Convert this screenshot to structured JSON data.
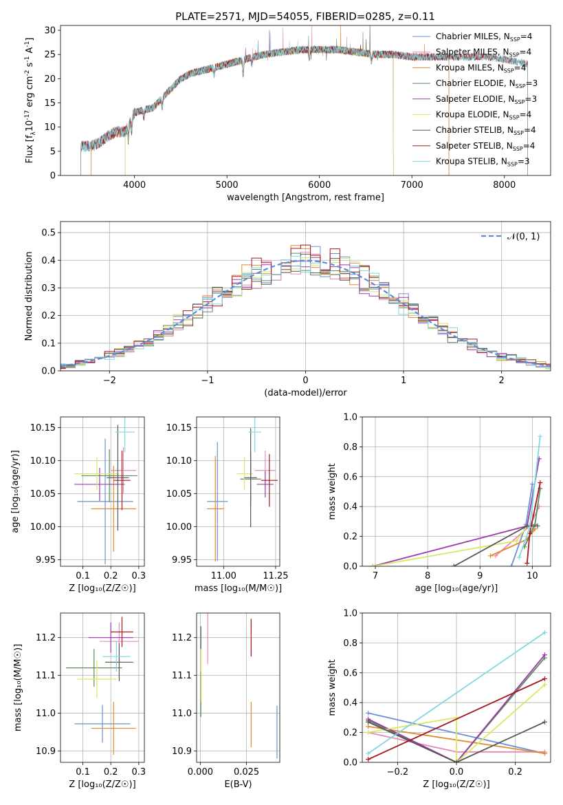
{
  "figure_title": "PLATE=2571, MJD=54055, FIBERID=0285, z=0.11",
  "colors": {
    "Chabrier MILES": "#6a8fd6",
    "Salpeter MILES": "#e88ab6",
    "Kroupa MILES": "#e08a2a",
    "Chabrier ELODIE": "#5e8a5c",
    "Salpeter ELODIE": "#9b3aa8",
    "Kroupa ELODIE": "#d8e860",
    "Chabrier STELIB": "#555555",
    "Salpeter STELIB": "#a8141e",
    "Kroupa STELIB": "#7fd8e0"
  },
  "chart_data": [
    {
      "id": "spectrum",
      "type": "line",
      "xlabel": "wavelength [Angstrom, rest frame]",
      "ylabel_main": "Flux [f",
      "ylabel_sub": "λ",
      "ylabel_mid": "10",
      "ylabel_sup1": "-17",
      "ylabel_tail": " erg cm",
      "ylabel_sup2": "-2",
      "ylabel_tail2": " s",
      "ylabel_sup3": "-1",
      "ylabel_tail3": " A",
      "ylabel_sup4": "-1",
      "ylabel_end": "]",
      "xlim": [
        3200,
        8500
      ],
      "ylim": [
        0,
        31
      ],
      "xticks": [
        4000,
        5000,
        6000,
        7000,
        8000
      ],
      "yticks": [
        0,
        5,
        10,
        15,
        20,
        25,
        30
      ],
      "legend_position": "top-right",
      "legend": [
        {
          "name": "Chabrier MILES",
          "sub": "SSP",
          "val": "=4"
        },
        {
          "name": "Salpeter MILES",
          "sub": "SSP",
          "val": "=4"
        },
        {
          "name": "Kroupa MILES",
          "sub": "SSP",
          "val": "=4"
        },
        {
          "name": "Chabrier ELODIE",
          "sub": "SSP",
          "val": "=3"
        },
        {
          "name": "Salpeter ELODIE",
          "sub": "SSP",
          "val": "=3"
        },
        {
          "name": "Kroupa ELODIE",
          "sub": "SSP",
          "val": "=4"
        },
        {
          "name": "Chabrier STELIB",
          "sub": "SSP",
          "val": "=4"
        },
        {
          "name": "Salpeter STELIB",
          "sub": "SSP",
          "val": "=4"
        },
        {
          "name": "Kroupa STELIB",
          "sub": "SSP",
          "val": "=3"
        }
      ],
      "series_ranges": [
        {
          "name": "Chabrier MILES",
          "x": [
            3530,
            7400
          ]
        },
        {
          "name": "Salpeter MILES",
          "x": [
            3530,
            7400
          ]
        },
        {
          "name": "Kroupa MILES",
          "x": [
            3530,
            7400
          ]
        },
        {
          "name": "Chabrier ELODIE",
          "x": [
            3900,
            6800
          ]
        },
        {
          "name": "Salpeter ELODIE",
          "x": [
            3900,
            6800
          ]
        },
        {
          "name": "Kroupa ELODIE",
          "x": [
            3900,
            6800
          ]
        },
        {
          "name": "Chabrier STELIB",
          "x": [
            3420,
            8250
          ]
        },
        {
          "name": "Salpeter STELIB",
          "x": [
            3420,
            8250
          ]
        },
        {
          "name": "Kroupa STELIB",
          "x": [
            3420,
            8250
          ]
        }
      ],
      "continuum": {
        "x": [
          3420,
          3500,
          3600,
          3700,
          3800,
          3900,
          4000,
          4100,
          4200,
          4300,
          4400,
          4500,
          4600,
          4800,
          5000,
          5200,
          5400,
          5600,
          5800,
          6000,
          6200,
          6400,
          6600,
          6800,
          7000,
          7200,
          7400,
          7600,
          7800,
          8000,
          8250
        ],
        "y": [
          6,
          6,
          6.5,
          8,
          9,
          9,
          13,
          13.5,
          14,
          16,
          18,
          20,
          21,
          22,
          23,
          24,
          25,
          25.5,
          26,
          26,
          26,
          25.5,
          25,
          25,
          24.5,
          24.5,
          24.5,
          24.5,
          24.5,
          24,
          23
        ]
      }
    },
    {
      "id": "residuals",
      "type": "histogram",
      "xlabel": "(data-model)/error",
      "ylabel": "Normed distribution",
      "xlim": [
        -2.5,
        2.5
      ],
      "ylim": [
        0,
        0.54
      ],
      "xticks": [
        -2,
        -1,
        0,
        1,
        2
      ],
      "yticks": [
        0.0,
        0.1,
        0.2,
        0.3,
        0.4,
        0.5
      ],
      "grid": true,
      "legend_position": "top-right",
      "legend_label": "𝒩(0, 1)",
      "bin_width": 0.1
    },
    {
      "id": "age_vs_Z",
      "type": "scatter",
      "xlabel": "Z [log₁₀(Z/Z☉)]",
      "ylabel": "age  [log₁₀(age/yr)]",
      "xlim": [
        0.02,
        0.32
      ],
      "ylim": [
        9.94,
        10.166
      ],
      "xticks": [
        0.1,
        0.2,
        0.3
      ],
      "yticks": [
        9.95,
        10.0,
        10.05,
        10.1,
        10.15
      ],
      "grid": true,
      "points": [
        {
          "series": "Chabrier MILES",
          "x": 0.18,
          "y": 10.038,
          "xerr": 0.1,
          "yerr": 0.095
        },
        {
          "series": "Salpeter MILES",
          "x": 0.245,
          "y": 10.085,
          "xerr": 0.045,
          "yerr": 0.035
        },
        {
          "series": "Kroupa MILES",
          "x": 0.21,
          "y": 10.027,
          "xerr": 0.08,
          "yerr": 0.065
        },
        {
          "series": "Chabrier ELODIE",
          "x": 0.195,
          "y": 10.077,
          "xerr": 0.1,
          "yerr": 0.04
        },
        {
          "series": "Salpeter ELODIE",
          "x": 0.16,
          "y": 10.064,
          "xerr": 0.09,
          "yerr": 0.025
        },
        {
          "series": "Kroupa ELODIE",
          "x": 0.15,
          "y": 10.08,
          "xerr": 0.08,
          "yerr": 0.025
        },
        {
          "series": "Chabrier STELIB",
          "x": 0.225,
          "y": 10.074,
          "xerr": 0.04,
          "yerr": 0.08
        },
        {
          "series": "Salpeter STELIB",
          "x": 0.24,
          "y": 10.07,
          "xerr": 0.03,
          "yerr": 0.045
        },
        {
          "series": "Kroupa STELIB",
          "x": 0.25,
          "y": 10.143,
          "xerr": 0.035,
          "yerr": 0.03
        }
      ]
    },
    {
      "id": "age_vs_mass",
      "type": "scatter",
      "xlabel": "mass [log₁₀(M/M☉)]",
      "ylabel": "",
      "xlim": [
        10.87,
        11.27
      ],
      "ylim": [
        9.94,
        10.166
      ],
      "xticks": [
        11.0,
        11.25
      ],
      "yticks": [
        9.95,
        10.0,
        10.05,
        10.1,
        10.15
      ],
      "grid": true,
      "points": [
        {
          "series": "Chabrier MILES",
          "x": 10.97,
          "y": 10.038,
          "xerr": 0.05,
          "yerr": 0.09
        },
        {
          "series": "Salpeter MILES",
          "x": 11.2,
          "y": 10.085,
          "xerr": 0.05,
          "yerr": 0.03
        },
        {
          "series": "Kroupa MILES",
          "x": 10.96,
          "y": 10.027,
          "xerr": 0.04,
          "yerr": 0.08
        },
        {
          "series": "Chabrier ELODIE",
          "x": 11.13,
          "y": 10.072,
          "xerr": 0.05,
          "yerr": 0.04
        },
        {
          "series": "Salpeter ELODIE",
          "x": 11.2,
          "y": 10.064,
          "xerr": 0.04,
          "yerr": 0.02
        },
        {
          "series": "Kroupa ELODIE",
          "x": 11.1,
          "y": 10.08,
          "xerr": 0.04,
          "yerr": 0.025
        },
        {
          "series": "Chabrier STELIB",
          "x": 11.13,
          "y": 10.074,
          "xerr": 0.03,
          "yerr": 0.075
        },
        {
          "series": "Salpeter STELIB",
          "x": 11.22,
          "y": 10.07,
          "xerr": 0.04,
          "yerr": 0.04
        },
        {
          "series": "Kroupa STELIB",
          "x": 11.15,
          "y": 10.143,
          "xerr": 0.03,
          "yerr": 0.03
        }
      ]
    },
    {
      "id": "weight_vs_age",
      "type": "line",
      "xlabel": "age  [log₁₀(age/yr)]",
      "ylabel": "mass weight",
      "xlim": [
        6.75,
        10.35
      ],
      "ylim": [
        0,
        1.0
      ],
      "xticks": [
        7,
        8,
        9,
        10
      ],
      "yticks": [
        0.0,
        0.2,
        0.4,
        0.6,
        0.8,
        1.0
      ],
      "grid": true,
      "series": [
        {
          "name": "Chabrier MILES",
          "x": [
            9.6,
            9.88,
            10.0
          ],
          "y": [
            0.0,
            0.28,
            0.55
          ]
        },
        {
          "name": "Salpeter MILES",
          "x": [
            9.3,
            9.95,
            10.13
          ],
          "y": [
            0.07,
            0.27,
            0.4
          ]
        },
        {
          "name": "Kroupa MILES",
          "x": [
            9.2,
            9.9,
            10.05
          ],
          "y": [
            0.07,
            0.18,
            0.25
          ]
        },
        {
          "name": "Chabrier ELODIE",
          "x": [
            9.85,
            10.05,
            10.15
          ],
          "y": [
            0.13,
            0.28,
            0.52
          ]
        },
        {
          "name": "Salpeter ELODIE",
          "x": [
            6.95,
            9.9,
            10.13
          ],
          "y": [
            0.0,
            0.27,
            0.72
          ]
        },
        {
          "name": "Kroupa ELODIE",
          "x": [
            6.95,
            9.7,
            9.9
          ],
          "y": [
            0.0,
            0.17,
            0.27
          ]
        },
        {
          "name": "Chabrier STELIB",
          "x": [
            8.5,
            9.9,
            10.1
          ],
          "y": [
            0.0,
            0.27,
            0.27
          ]
        },
        {
          "name": "Salpeter STELIB",
          "x": [
            9.9,
            9.95,
            10.15
          ],
          "y": [
            0.02,
            0.22,
            0.56
          ]
        },
        {
          "name": "Kroupa STELIB",
          "x": [
            9.75,
            9.95,
            10.15
          ],
          "y": [
            0.06,
            0.26,
            0.87
          ]
        }
      ]
    },
    {
      "id": "mass_vs_Z",
      "type": "scatter",
      "xlabel": "Z [log₁₀(Z/Z☉)]",
      "ylabel": "mass [log₁₀(M/M☉)]",
      "xlim": [
        0.02,
        0.32
      ],
      "ylim": [
        10.87,
        11.265
      ],
      "xticks": [
        0.1,
        0.2,
        0.3
      ],
      "yticks": [
        10.9,
        11.0,
        11.1,
        11.2
      ],
      "grid": true,
      "points": [
        {
          "series": "Chabrier MILES",
          "x": 0.17,
          "y": 10.972,
          "xerr": 0.1,
          "yerr": 0.05
        },
        {
          "series": "Salpeter MILES",
          "x": 0.23,
          "y": 11.19,
          "xerr": 0.07,
          "yerr": 0.05
        },
        {
          "series": "Kroupa MILES",
          "x": 0.21,
          "y": 10.96,
          "xerr": 0.08,
          "yerr": 0.07
        },
        {
          "series": "Chabrier ELODIE",
          "x": 0.14,
          "y": 11.12,
          "xerr": 0.1,
          "yerr": 0.05
        },
        {
          "series": "Salpeter ELODIE",
          "x": 0.2,
          "y": 11.2,
          "xerr": 0.08,
          "yerr": 0.04
        },
        {
          "series": "Kroupa ELODIE",
          "x": 0.15,
          "y": 11.09,
          "xerr": 0.07,
          "yerr": 0.05
        },
        {
          "series": "Chabrier STELIB",
          "x": 0.23,
          "y": 11.135,
          "xerr": 0.05,
          "yerr": 0.05
        },
        {
          "series": "Salpeter STELIB",
          "x": 0.24,
          "y": 11.215,
          "xerr": 0.04,
          "yerr": 0.04
        },
        {
          "series": "Kroupa STELIB",
          "x": 0.22,
          "y": 11.15,
          "xerr": 0.05,
          "yerr": 0.04
        }
      ]
    },
    {
      "id": "mass_vs_ebv",
      "type": "scatter",
      "xlabel": "E(B-V)",
      "ylabel": "",
      "xlim": [
        -0.002,
        0.043
      ],
      "ylim": [
        10.87,
        11.265
      ],
      "xticks": [
        0.0,
        0.025
      ],
      "yticks": [
        10.9,
        11.0,
        11.1,
        11.2
      ],
      "grid": true,
      "points": [
        {
          "series": "Chabrier MILES",
          "x": 0.0415,
          "y": 10.95,
          "xerr": 0,
          "yerr": 0.07
        },
        {
          "series": "Salpeter MILES",
          "x": 0.004,
          "y": 11.2,
          "xerr": 0,
          "yerr": 0.07
        },
        {
          "series": "Kroupa MILES",
          "x": 0.0275,
          "y": 10.97,
          "xerr": 0,
          "yerr": 0.06
        },
        {
          "series": "Chabrier ELODIE",
          "x": 0.0003,
          "y": 11.05,
          "xerr": 0,
          "yerr": 0.06
        },
        {
          "series": "Kroupa ELODIE",
          "x": 0.0005,
          "y": 11.1,
          "xerr": 0,
          "yerr": 0.07
        },
        {
          "series": "Chabrier STELIB",
          "x": 0.0003,
          "y": 11.2,
          "xerr": 0,
          "yerr": 0.03
        },
        {
          "series": "Salpeter STELIB",
          "x": 0.0275,
          "y": 11.2,
          "xerr": 0,
          "yerr": 0.05
        }
      ]
    },
    {
      "id": "weight_vs_Z",
      "type": "line",
      "xlabel": "Z [log₁₀(Z/Z☉)]",
      "ylabel": "mass weight",
      "xlim": [
        -0.32,
        0.32
      ],
      "ylim": [
        0,
        1.0
      ],
      "xticks": [
        -0.2,
        0.0,
        0.2
      ],
      "yticks": [
        0.0,
        0.2,
        0.4,
        0.6,
        0.8,
        1.0
      ],
      "grid": true,
      "series": [
        {
          "name": "Chabrier MILES",
          "x": [
            -0.3,
            0.3
          ],
          "y": [
            0.33,
            0.06
          ]
        },
        {
          "name": "Salpeter MILES",
          "x": [
            -0.3,
            0.0,
            0.3
          ],
          "y": [
            0.2,
            0.07,
            0.07
          ]
        },
        {
          "name": "Kroupa MILES",
          "x": [
            -0.3,
            0.3
          ],
          "y": [
            0.24,
            0.06
          ]
        },
        {
          "name": "Chabrier ELODIE",
          "x": [
            -0.3,
            0.0,
            0.3
          ],
          "y": [
            0.28,
            0.0,
            0.7
          ]
        },
        {
          "name": "Salpeter ELODIE",
          "x": [
            -0.3,
            0.0,
            0.3
          ],
          "y": [
            0.29,
            0.0,
            0.72
          ]
        },
        {
          "name": "Kroupa ELODIE",
          "x": [
            -0.3,
            0.0,
            0.0,
            0.3
          ],
          "y": [
            0.2,
            0.3,
            0.0,
            0.52
          ]
        },
        {
          "name": "Chabrier STELIB",
          "x": [
            -0.3,
            0.0,
            0.3
          ],
          "y": [
            0.27,
            0.0,
            0.27
          ]
        },
        {
          "name": "Salpeter STELIB",
          "x": [
            -0.3,
            0.3
          ],
          "y": [
            0.02,
            0.56
          ]
        },
        {
          "name": "Kroupa STELIB",
          "x": [
            -0.3,
            0.3
          ],
          "y": [
            0.06,
            0.87
          ]
        }
      ]
    }
  ]
}
